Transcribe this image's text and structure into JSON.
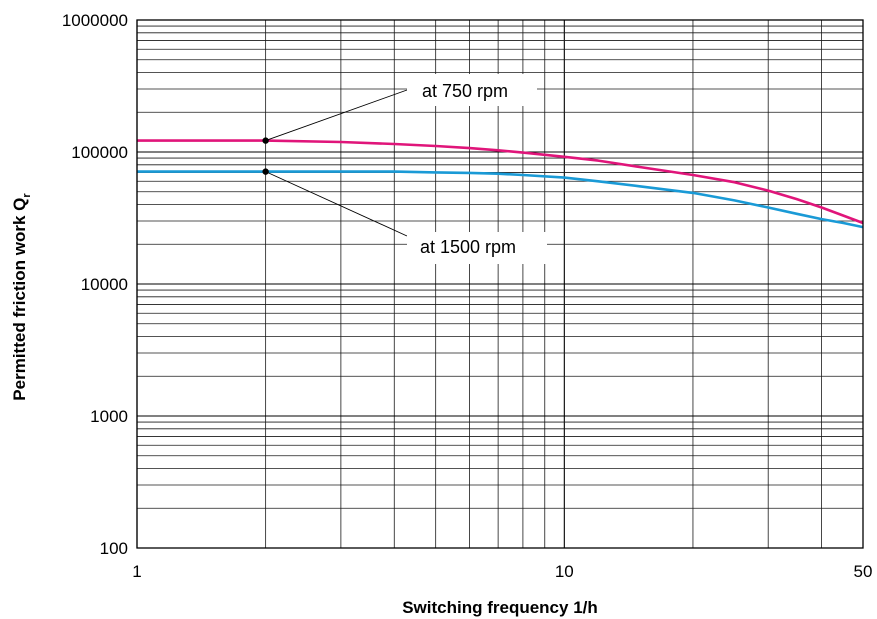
{
  "chart_data": {
    "type": "line",
    "xlabel": "Switching frequency 1/h",
    "ylabel": "Permitted friction work Q",
    "ylabel_subscript": "r",
    "x_scale": "log",
    "y_scale": "log",
    "xlim": [
      1,
      50
    ],
    "ylim": [
      100,
      1000000
    ],
    "x_ticks": [
      {
        "value": 1,
        "label": "1"
      },
      {
        "value": 10,
        "label": "10"
      },
      {
        "value": 50,
        "label": "50"
      }
    ],
    "y_ticks": [
      {
        "value": 100,
        "label": "100"
      },
      {
        "value": 1000,
        "label": "1000"
      },
      {
        "value": 10000,
        "label": "10000"
      },
      {
        "value": 100000,
        "label": "100000"
      },
      {
        "value": 1000000,
        "label": "1000000"
      }
    ],
    "grid": true,
    "series": [
      {
        "name": "at 750 rpm",
        "color": "#e0157a",
        "points": [
          [
            1,
            122000
          ],
          [
            2,
            122000
          ],
          [
            3,
            119000
          ],
          [
            4,
            115000
          ],
          [
            5,
            111000
          ],
          [
            6,
            107000
          ],
          [
            7,
            103000
          ],
          [
            8,
            99000
          ],
          [
            10,
            92000
          ],
          [
            12,
            86000
          ],
          [
            15,
            77000
          ],
          [
            20,
            67000
          ],
          [
            25,
            59000
          ],
          [
            30,
            51000
          ],
          [
            35,
            44000
          ],
          [
            40,
            38000
          ],
          [
            45,
            33000
          ],
          [
            50,
            29000
          ]
        ]
      },
      {
        "name": "at 1500 rpm",
        "color": "#1a9ad6",
        "points": [
          [
            1,
            71000
          ],
          [
            2,
            71000
          ],
          [
            3,
            71000
          ],
          [
            4,
            71000
          ],
          [
            5,
            70000
          ],
          [
            6,
            69500
          ],
          [
            7,
            68500
          ],
          [
            8,
            67000
          ],
          [
            10,
            64000
          ],
          [
            12,
            60000
          ],
          [
            15,
            55000
          ],
          [
            20,
            49000
          ],
          [
            25,
            43000
          ],
          [
            30,
            38000
          ],
          [
            35,
            34000
          ],
          [
            40,
            31000
          ],
          [
            45,
            29000
          ],
          [
            50,
            27000
          ]
        ]
      }
    ],
    "annotations": [
      {
        "text": "at 750 rpm",
        "series": "at 750 rpm",
        "marker": [
          2,
          122000
        ]
      },
      {
        "text": "at 1500 rpm",
        "series": "at 1500 rpm",
        "marker": [
          2,
          71000
        ]
      }
    ]
  }
}
